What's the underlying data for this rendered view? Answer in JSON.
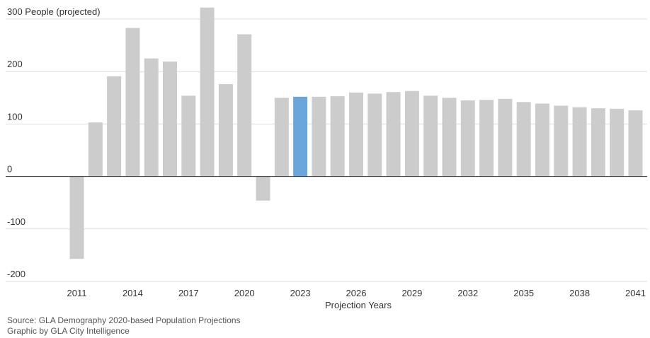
{
  "chart_data": {
    "type": "bar",
    "title": "",
    "ylabel": "People (projected)",
    "xlabel": "Projection Years",
    "ylim": [
      -200,
      300
    ],
    "yticks": [
      -200,
      -100,
      0,
      100,
      200,
      300
    ],
    "xtick_labels": [
      "2011",
      "2014",
      "2017",
      "2020",
      "2023",
      "2026",
      "2029",
      "2032",
      "2035",
      "2038",
      "2041"
    ],
    "highlight_year": 2023,
    "colors": {
      "bar": "#cccccc",
      "highlight": "#6aa6dc"
    },
    "grid": true,
    "x": [
      2011,
      2012,
      2013,
      2014,
      2015,
      2016,
      2017,
      2018,
      2019,
      2020,
      2021,
      2022,
      2023,
      2024,
      2025,
      2026,
      2027,
      2028,
      2029,
      2030,
      2031,
      2032,
      2033,
      2034,
      2035,
      2036,
      2037,
      2038,
      2039,
      2040,
      2041
    ],
    "values": [
      -157,
      103,
      191,
      283,
      225,
      219,
      154,
      322,
      176,
      271,
      -46,
      150,
      152,
      152,
      153,
      160,
      158,
      161,
      163,
      154,
      150,
      145,
      146,
      148,
      142,
      139,
      135,
      132,
      130,
      129,
      126
    ]
  },
  "footer": {
    "source": "Source: GLA Demography 2020-based Population Projections",
    "credit": "Graphic by GLA City Intelligence"
  }
}
